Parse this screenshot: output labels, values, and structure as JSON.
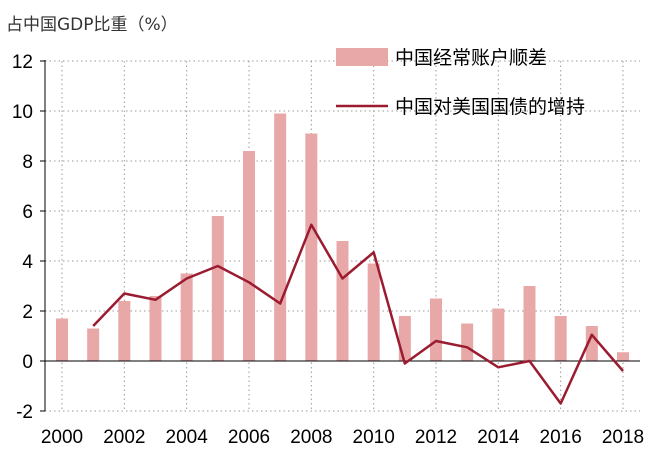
{
  "chart_data": {
    "type": "bar",
    "unit_label": "占中国GDP比重（%）",
    "x": [
      2000,
      2001,
      2002,
      2003,
      2004,
      2005,
      2006,
      2007,
      2008,
      2009,
      2010,
      2011,
      2012,
      2013,
      2014,
      2015,
      2016,
      2017,
      2018
    ],
    "x_tick_labels": [
      "2000",
      "2002",
      "2004",
      "2006",
      "2008",
      "2010",
      "2012",
      "2014",
      "2016",
      "2018"
    ],
    "y_tick_labels": [
      "12",
      "10",
      "8",
      "6",
      "4",
      "2",
      "0",
      "-2"
    ],
    "ylim": [
      -2,
      12
    ],
    "grid": true,
    "legend_position": "top-right",
    "series": [
      {
        "name": "中国经常账户顺差",
        "type": "bar",
        "color": "#e8a8a8",
        "values": [
          1.7,
          1.3,
          2.4,
          2.6,
          3.5,
          5.8,
          8.4,
          9.9,
          9.1,
          4.8,
          3.9,
          1.8,
          2.5,
          1.5,
          2.1,
          3.0,
          1.8,
          1.4,
          0.35
        ]
      },
      {
        "name": "中国对美国国债的增持",
        "type": "line",
        "color": "#9b1c31",
        "values": [
          null,
          1.4,
          2.7,
          2.45,
          3.3,
          3.8,
          3.15,
          2.3,
          5.45,
          3.3,
          4.35,
          -0.1,
          0.8,
          0.55,
          -0.25,
          0.0,
          -1.7,
          1.05,
          -0.4
        ]
      }
    ]
  }
}
